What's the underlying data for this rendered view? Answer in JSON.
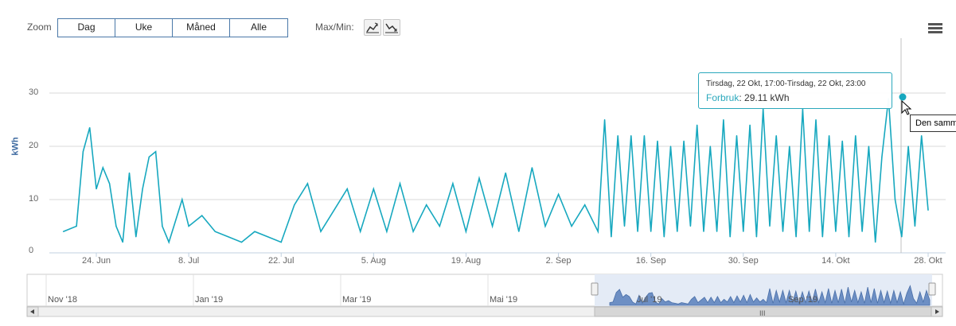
{
  "toolbar": {
    "zoom_label": "Zoom",
    "zoom_buttons": [
      "Dag",
      "Uke",
      "Måned",
      "Alle"
    ],
    "maxmin_label": "Max/Min:"
  },
  "tooltip": {
    "title": "Tirsdag, 22 Okt, 17:00-Tirsdag, 22 Okt, 23:00",
    "series": "Forbruk",
    "value": "29.11 kWh"
  },
  "hover_title": "Den samm",
  "scroll_grip": "III",
  "colors": {
    "series": "#17a8bf",
    "grid": "#d8d8d8",
    "navigator_fill": "#6d8fc4",
    "accent": "#3e6aa0"
  },
  "icons": [
    "max-chart-icon",
    "min-chart-icon",
    "hamburger-menu-icon",
    "scroll-left-arrow-icon",
    "scroll-right-arrow-icon",
    "mouse-cursor-icon"
  ],
  "chart_data": {
    "type": "line",
    "ylabel": "kWh",
    "ylim": [
      0,
      35
    ],
    "yticks": [
      0,
      10,
      20,
      30
    ],
    "xticks": [
      "24. Jun",
      "8. Jul",
      "22. Jul",
      "5. Aug",
      "19. Aug",
      "2. Sep",
      "16. Sep",
      "30. Sep",
      "14. Okt",
      "28. Okt"
    ],
    "x_start": "2019-06-19",
    "x_end": "2019-10-28",
    "series": [
      {
        "name": "Forbruk",
        "x": [
          "2019-06-19",
          "2019-06-21",
          "2019-06-22",
          "2019-06-23",
          "2019-06-24",
          "2019-06-25",
          "2019-06-26",
          "2019-06-27",
          "2019-06-28",
          "2019-06-29",
          "2019-06-30",
          "2019-07-01",
          "2019-07-02",
          "2019-07-03",
          "2019-07-04",
          "2019-07-05",
          "2019-07-07",
          "2019-07-08",
          "2019-07-10",
          "2019-07-12",
          "2019-07-14",
          "2019-07-16",
          "2019-07-18",
          "2019-07-20",
          "2019-07-22",
          "2019-07-24",
          "2019-07-26",
          "2019-07-28",
          "2019-07-30",
          "2019-08-01",
          "2019-08-03",
          "2019-08-05",
          "2019-08-07",
          "2019-08-09",
          "2019-08-11",
          "2019-08-13",
          "2019-08-15",
          "2019-08-17",
          "2019-08-19",
          "2019-08-21",
          "2019-08-23",
          "2019-08-25",
          "2019-08-27",
          "2019-08-29",
          "2019-08-31",
          "2019-09-02",
          "2019-09-04",
          "2019-09-06",
          "2019-09-08",
          "2019-09-09",
          "2019-09-10",
          "2019-09-11",
          "2019-09-12",
          "2019-09-13",
          "2019-09-14",
          "2019-09-15",
          "2019-09-16",
          "2019-09-17",
          "2019-09-18",
          "2019-09-19",
          "2019-09-20",
          "2019-09-21",
          "2019-09-22",
          "2019-09-23",
          "2019-09-24",
          "2019-09-25",
          "2019-09-26",
          "2019-09-27",
          "2019-09-28",
          "2019-09-29",
          "2019-09-30",
          "2019-10-01",
          "2019-10-02",
          "2019-10-03",
          "2019-10-04",
          "2019-10-05",
          "2019-10-06",
          "2019-10-07",
          "2019-10-08",
          "2019-10-09",
          "2019-10-10",
          "2019-10-11",
          "2019-10-12",
          "2019-10-13",
          "2019-10-14",
          "2019-10-15",
          "2019-10-16",
          "2019-10-17",
          "2019-10-18",
          "2019-10-19",
          "2019-10-20",
          "2019-10-21",
          "2019-10-22",
          "2019-10-23",
          "2019-10-24",
          "2019-10-25",
          "2019-10-26",
          "2019-10-27",
          "2019-10-28"
        ],
        "y": [
          4,
          5,
          19,
          23.5,
          12,
          16,
          13,
          5,
          2,
          15,
          3,
          12,
          18,
          19,
          5,
          2,
          10,
          5,
          7,
          4,
          3,
          2,
          4,
          3,
          2,
          9,
          13,
          4,
          8,
          12,
          4,
          12,
          4,
          13,
          4,
          9,
          5,
          13,
          4,
          14,
          5,
          15,
          4,
          16,
          5,
          11,
          5,
          9,
          4,
          25,
          3,
          22,
          5,
          22,
          4,
          22,
          4,
          21,
          3,
          20,
          4,
          21,
          5,
          24,
          4,
          20,
          4,
          25,
          3,
          22,
          4,
          24,
          3,
          27,
          5,
          22,
          4,
          20,
          3,
          27,
          4,
          25,
          3,
          22,
          4,
          21,
          3,
          22,
          4,
          20,
          2,
          18,
          29,
          10,
          3,
          20,
          5,
          22,
          8
        ]
      }
    ]
  },
  "navigator": {
    "ticks": [
      "Nov '18",
      "Jan '19",
      "Mar '19",
      "Mai '19",
      "Jul '19",
      "Sep '19"
    ]
  }
}
